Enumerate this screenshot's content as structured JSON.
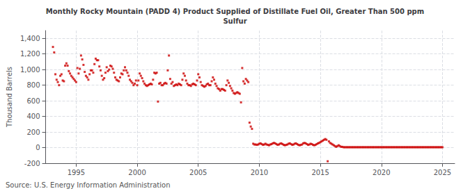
{
  "chart_data": {
    "type": "scatter",
    "title": "Monthly Rocky Mountain (PADD 4) Product Supplied of Distillate Fuel Oil, Greater Than 500 ppm\nSulfur",
    "ylabel": "Thousand Barrels",
    "annotations": [
      "Source: U.S. Energy Information Administration"
    ],
    "color": "#cc0000",
    "marker": "square",
    "grid": true,
    "xlim": [
      1992.5,
      2026.0
    ],
    "ylim": [
      -200,
      1500
    ],
    "xticks": [
      1995,
      2000,
      2005,
      2010,
      2015,
      2020,
      2025
    ],
    "yticks": [
      -200,
      0,
      200,
      400,
      600,
      800,
      {
        "value": 1000,
        "label": "1,000"
      },
      {
        "value": 1200,
        "label": "1,200"
      },
      {
        "value": 1400,
        "label": "1,400"
      }
    ],
    "x": [
      1993.1,
      1993.2,
      1993.3,
      1993.4,
      1993.5,
      1993.6,
      1993.7,
      1993.8,
      1993.9,
      1994.0,
      1994.1,
      1994.2,
      1994.3,
      1994.4,
      1994.5,
      1994.6,
      1994.7,
      1994.8,
      1994.9,
      1995.0,
      1995.1,
      1995.2,
      1995.3,
      1995.4,
      1995.5,
      1995.6,
      1995.7,
      1995.8,
      1995.9,
      1996.0,
      1996.1,
      1996.2,
      1996.3,
      1996.4,
      1996.5,
      1996.6,
      1996.7,
      1996.8,
      1996.9,
      1997.0,
      1997.1,
      1997.2,
      1997.3,
      1997.4,
      1997.5,
      1997.6,
      1997.7,
      1997.8,
      1997.9,
      1998.0,
      1998.1,
      1998.2,
      1998.3,
      1998.4,
      1998.5,
      1998.6,
      1998.7,
      1998.8,
      1998.9,
      1999.0,
      1999.1,
      1999.2,
      1999.3,
      1999.4,
      1999.5,
      1999.6,
      1999.7,
      1999.8,
      1999.9,
      2000.0,
      2000.1,
      2000.2,
      2000.3,
      2000.4,
      2000.5,
      2000.6,
      2000.7,
      2000.8,
      2000.9,
      2001.0,
      2001.1,
      2001.2,
      2001.3,
      2001.4,
      2001.5,
      2001.6,
      2001.7,
      2001.8,
      2001.9,
      2002.0,
      2002.1,
      2002.2,
      2002.3,
      2002.4,
      2002.5,
      2002.6,
      2002.7,
      2002.8,
      2002.9,
      2003.0,
      2003.1,
      2003.2,
      2003.3,
      2003.4,
      2003.5,
      2003.6,
      2003.7,
      2003.8,
      2003.9,
      2004.0,
      2004.1,
      2004.2,
      2004.3,
      2004.4,
      2004.5,
      2004.6,
      2004.7,
      2004.8,
      2004.9,
      2005.0,
      2005.1,
      2005.2,
      2005.3,
      2005.4,
      2005.5,
      2005.6,
      2005.7,
      2005.8,
      2005.9,
      2006.0,
      2006.1,
      2006.2,
      2006.3,
      2006.4,
      2006.5,
      2006.6,
      2006.7,
      2006.8,
      2006.9,
      2007.0,
      2007.1,
      2007.2,
      2007.3,
      2007.4,
      2007.5,
      2007.6,
      2007.7,
      2007.8,
      2007.9,
      2008.0,
      2008.1,
      2008.2,
      2008.3,
      2008.4,
      2008.5,
      2008.6,
      2008.7,
      2008.8,
      2008.9,
      2009.0,
      2009.1,
      2009.2,
      2009.3,
      2009.4,
      2009.5,
      2009.6,
      2009.7,
      2009.8,
      2009.9,
      2010.0,
      2010.1,
      2010.2,
      2010.3,
      2010.4,
      2010.5,
      2010.6,
      2010.7,
      2010.8,
      2010.9,
      2011.0,
      2011.1,
      2011.2,
      2011.3,
      2011.4,
      2011.5,
      2011.6,
      2011.7,
      2011.8,
      2011.9,
      2012.0,
      2012.1,
      2012.2,
      2012.3,
      2012.4,
      2012.5,
      2012.6,
      2012.7,
      2012.8,
      2012.9,
      2013.0,
      2013.1,
      2013.2,
      2013.3,
      2013.4,
      2013.5,
      2013.6,
      2013.7,
      2013.8,
      2013.9,
      2014.0,
      2014.1,
      2014.2,
      2014.3,
      2014.4,
      2014.5,
      2014.6,
      2014.7,
      2014.8,
      2014.9,
      2015.0,
      2015.1,
      2015.2,
      2015.3,
      2015.4,
      2015.5,
      2015.6,
      2015.7,
      2015.8,
      2015.9,
      2016.0,
      2016.1,
      2016.2,
      2016.3,
      2016.4,
      2016.5,
      2016.6,
      2016.7,
      2016.8,
      2016.9,
      2017.0,
      2017.1,
      2017.2,
      2017.3,
      2017.4,
      2017.5,
      2017.6,
      2017.7,
      2017.8,
      2017.9,
      2018.0,
      2018.1,
      2018.2,
      2018.3,
      2018.4,
      2018.5,
      2018.6,
      2018.7,
      2018.8,
      2018.9,
      2019.0,
      2019.1,
      2019.2,
      2019.3,
      2019.4,
      2019.5,
      2019.6,
      2019.7,
      2019.8,
      2019.9,
      2020.0,
      2020.1,
      2020.2,
      2020.3,
      2020.4,
      2020.5,
      2020.6,
      2020.7,
      2020.8,
      2020.9,
      2021.0,
      2021.1,
      2021.2,
      2021.3,
      2021.4,
      2021.5,
      2021.6,
      2021.7,
      2021.8,
      2021.9,
      2022.0,
      2022.1,
      2022.2,
      2022.3,
      2022.4,
      2022.5,
      2022.6,
      2022.7,
      2022.8,
      2022.9,
      2023.0,
      2023.1,
      2023.2,
      2023.3,
      2023.4,
      2023.5,
      2023.6,
      2023.7,
      2023.8,
      2023.9,
      2024.0,
      2024.1,
      2024.2,
      2024.3,
      2024.4,
      2024.5,
      2024.6,
      2024.7,
      2024.8,
      2024.9,
      2025.0
    ],
    "values": [
      1290,
      1220,
      940,
      870,
      840,
      800,
      920,
      940,
      860,
      850,
      1050,
      1080,
      1050,
      980,
      950,
      920,
      900,
      880,
      860,
      840,
      1020,
      950,
      1010,
      1180,
      1130,
      1060,
      970,
      920,
      900,
      870,
      940,
      990,
      990,
      960,
      1070,
      1140,
      1120,
      1120,
      1040,
      990,
      920,
      870,
      890,
      960,
      1030,
      980,
      1000,
      1050,
      1040,
      1010,
      960,
      900,
      870,
      860,
      850,
      900,
      950,
      940,
      990,
      1030,
      990,
      960,
      920,
      870,
      850,
      830,
      800,
      820,
      860,
      800,
      860,
      950,
      920,
      890,
      850,
      820,
      800,
      790,
      800,
      810,
      820,
      810,
      870,
      960,
      950,
      960,
      590,
      820,
      830,
      800,
      800,
      820,
      830,
      820,
      990,
      1180,
      880,
      820,
      840,
      790,
      800,
      810,
      800,
      820,
      810,
      800,
      870,
      950,
      920,
      860,
      820,
      800,
      800,
      790,
      810,
      820,
      810,
      800,
      860,
      940,
      900,
      840,
      800,
      790,
      780,
      790,
      810,
      820,
      800,
      800,
      850,
      900,
      870,
      820,
      790,
      760,
      750,
      730,
      750,
      750,
      740,
      730,
      800,
      860,
      830,
      790,
      760,
      730,
      700,
      690,
      700,
      710,
      700,
      690,
      580,
      1020,
      850,
      820,
      880,
      860,
      840,
      320,
      270,
      240,
      50,
      40,
      40,
      35,
      40,
      50,
      55,
      45,
      35,
      40,
      50,
      40,
      35,
      30,
      40,
      45,
      55,
      60,
      55,
      45,
      35,
      40,
      50,
      55,
      45,
      35,
      30,
      35,
      40,
      50,
      55,
      45,
      35,
      40,
      50,
      55,
      45,
      35,
      30,
      35,
      40,
      55,
      60,
      55,
      45,
      35,
      40,
      50,
      45,
      35,
      30,
      35,
      45,
      55,
      60,
      70,
      80,
      90,
      100,
      110,
      100,
      -175,
      80,
      60,
      50,
      40,
      30,
      20,
      10,
      20,
      30,
      20,
      10,
      10,
      5,
      5,
      5,
      5,
      5,
      5,
      5,
      5,
      5,
      5,
      5,
      5,
      5,
      5,
      5,
      5,
      5,
      5,
      5,
      5,
      5,
      5,
      5,
      5,
      5,
      5,
      5,
      5,
      5,
      5,
      5,
      5,
      5,
      5,
      5,
      5,
      5,
      5,
      5,
      5,
      5,
      5,
      5,
      5,
      5,
      5,
      5,
      5,
      5,
      5,
      5,
      5,
      5,
      5,
      5,
      5,
      5,
      5,
      5,
      5,
      5,
      5,
      5,
      5,
      5,
      5,
      5,
      5,
      5,
      5,
      5,
      5,
      5,
      5,
      5,
      5,
      5,
      5,
      5,
      5,
      5,
      5
    ]
  }
}
